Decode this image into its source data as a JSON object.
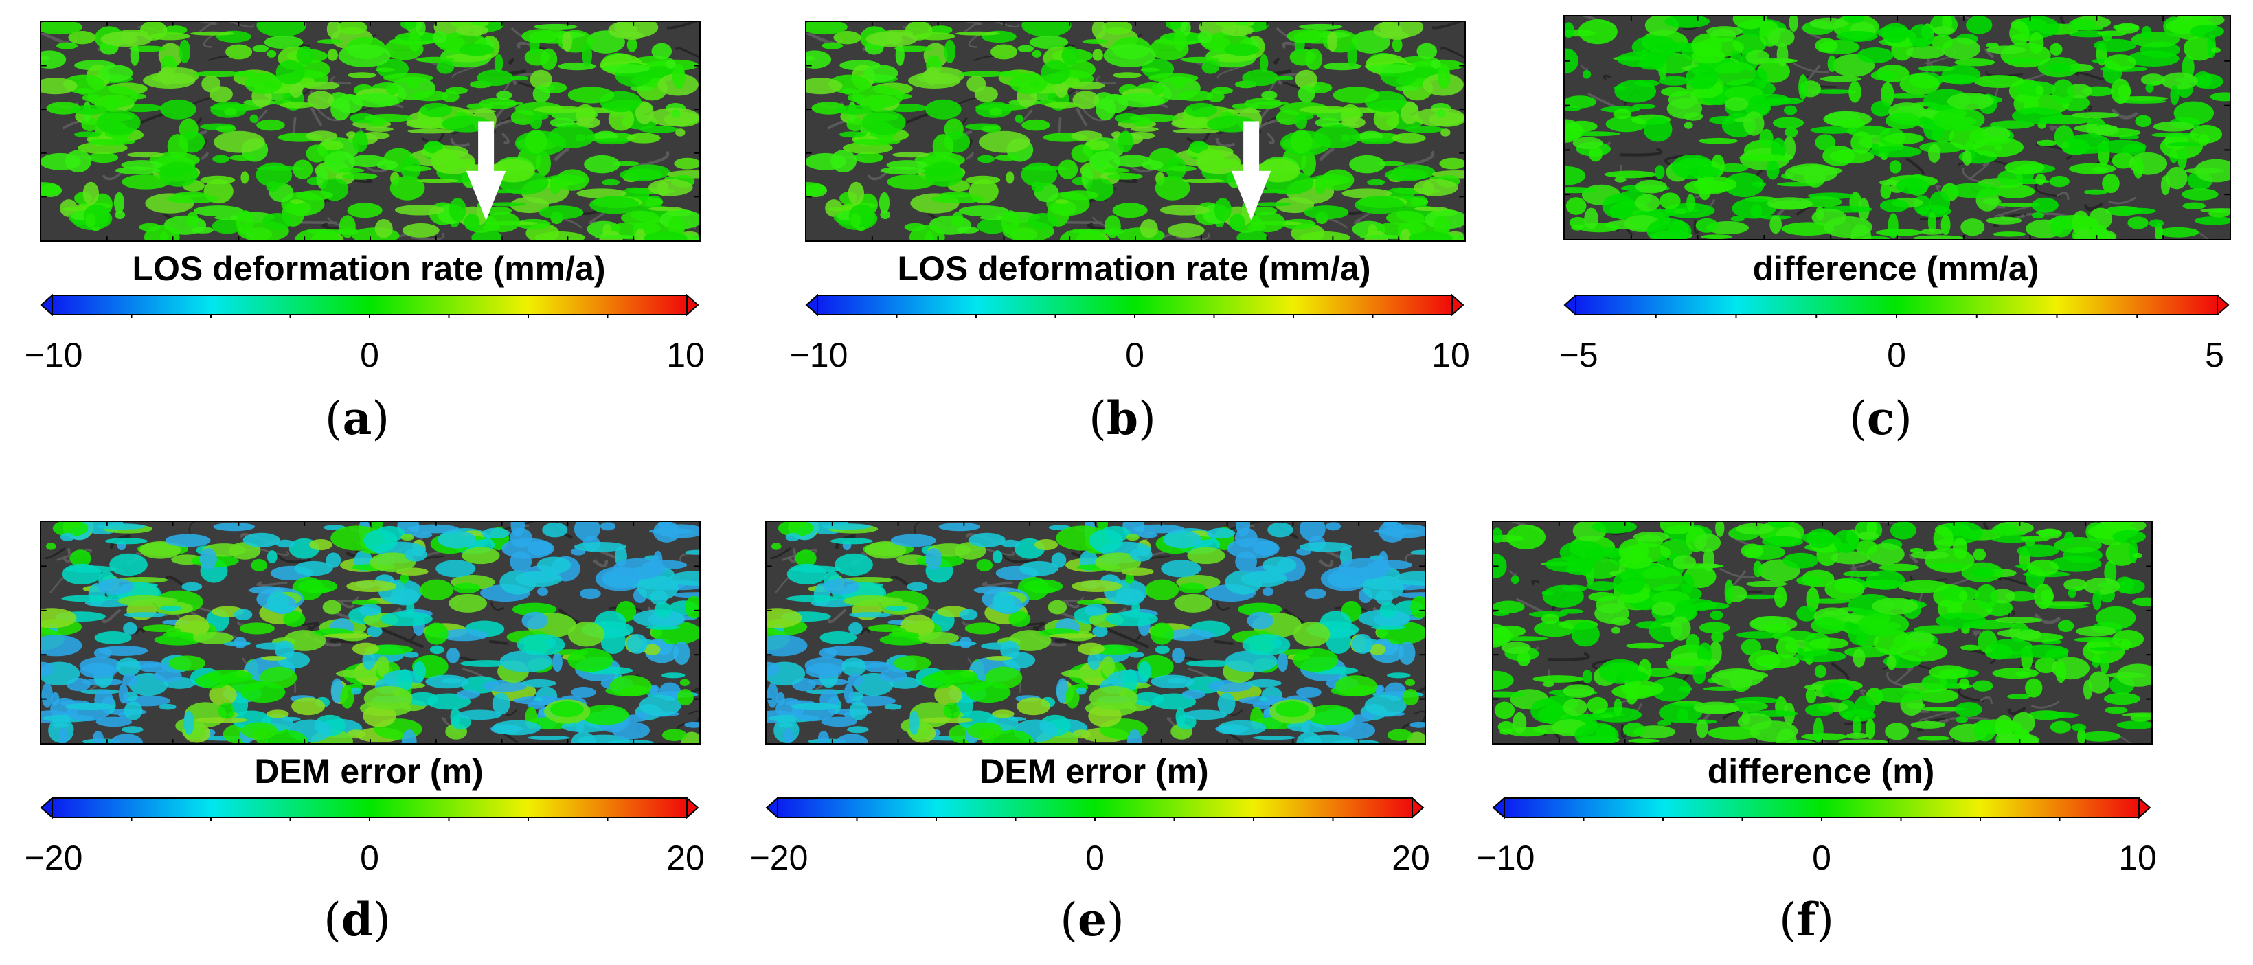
{
  "colors": {
    "blue": "#0b1ef0",
    "cyan": "#00e6f0",
    "green": "#00e600",
    "yellow": "#f0f000",
    "red": "#f00a0a",
    "hill": "#3c3c3c"
  },
  "panels": [
    {
      "id": "a",
      "title": "LOS deformation rate (mm/a)",
      "ticks": [
        "−10",
        "0",
        "10"
      ],
      "label": "a",
      "scheme": "rate",
      "arrow": true
    },
    {
      "id": "b",
      "title": "LOS deformation rate (mm/a)",
      "ticks": [
        "−10",
        "0",
        "10"
      ],
      "label": "b",
      "scheme": "rate",
      "arrow": true
    },
    {
      "id": "c",
      "title": "difference (mm/a)",
      "ticks": [
        "−5",
        "0",
        "5"
      ],
      "label": "c",
      "scheme": "diff",
      "arrow": false
    },
    {
      "id": "d",
      "title": "DEM error (m)",
      "ticks": [
        "−20",
        "0",
        "20"
      ],
      "label": "d",
      "scheme": "dem",
      "arrow": false
    },
    {
      "id": "e",
      "title": "DEM error (m)",
      "ticks": [
        "−20",
        "0",
        "20"
      ],
      "label": "e",
      "scheme": "dem",
      "arrow": false
    },
    {
      "id": "f",
      "title": "difference (m)",
      "ticks": [
        "−10",
        "0",
        "10"
      ],
      "label": "f",
      "scheme": "diff",
      "arrow": false
    }
  ]
}
